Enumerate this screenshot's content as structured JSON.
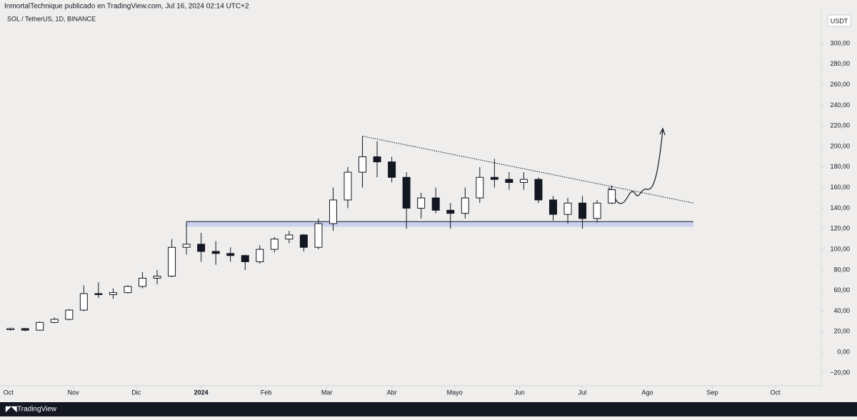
{
  "header": "InmortalTechnique publicado en TradingView.com, Jul 16, 2024 02:14 UTC+2",
  "footer": "TradingView",
  "chart_data": {
    "type": "candlestick",
    "title": "SOL / TetherUS, 1D, BINANCE",
    "currency": "USDT",
    "x": [
      "2023-10-02",
      "2023-10-09",
      "2023-10-16",
      "2023-10-23",
      "2023-10-30",
      "2023-11-06",
      "2023-11-13",
      "2023-11-20",
      "2023-11-27",
      "2023-12-04",
      "2023-12-11",
      "2023-12-18",
      "2023-12-25",
      "2024-01-01",
      "2024-01-08",
      "2024-01-15",
      "2024-01-22",
      "2024-01-29",
      "2024-02-05",
      "2024-02-12",
      "2024-02-19",
      "2024-02-26",
      "2024-03-04",
      "2024-03-11",
      "2024-03-18",
      "2024-03-25",
      "2024-04-01",
      "2024-04-08",
      "2024-04-15",
      "2024-04-22",
      "2024-04-29",
      "2024-05-06",
      "2024-05-13",
      "2024-05-20",
      "2024-05-27",
      "2024-06-03",
      "2024-06-10",
      "2024-06-17",
      "2024-06-24",
      "2024-07-01",
      "2024-07-08",
      "2024-07-15"
    ],
    "open": [
      22,
      23,
      21.5,
      29,
      32,
      41,
      57,
      56,
      58,
      64,
      72,
      74,
      102,
      105,
      98,
      96,
      94,
      88,
      100,
      110,
      114,
      102,
      125,
      148,
      175,
      190,
      185,
      170,
      140,
      150,
      138,
      135,
      150,
      170,
      168,
      165,
      168,
      148,
      134,
      145,
      130,
      145
    ],
    "high": [
      24,
      23.5,
      30,
      34,
      42,
      65,
      68,
      62,
      65,
      78,
      80,
      110,
      125,
      116,
      108,
      102,
      95,
      104,
      112,
      118,
      115,
      130,
      160,
      180,
      210,
      205,
      190,
      175,
      155,
      160,
      145,
      160,
      180,
      188,
      175,
      175,
      170,
      152,
      150,
      152,
      148,
      162
    ],
    "low": [
      21,
      20.5,
      21,
      28,
      31,
      40,
      53,
      52,
      57,
      62,
      66,
      73,
      95,
      88,
      85,
      88,
      80,
      86,
      97,
      106,
      98,
      100,
      118,
      140,
      160,
      170,
      165,
      120,
      130,
      135,
      120,
      130,
      145,
      160,
      158,
      158,
      145,
      128,
      125,
      120,
      126,
      144
    ],
    "close": [
      23,
      21.5,
      29,
      32,
      41,
      57,
      56,
      58,
      64,
      72,
      74,
      102,
      105,
      98,
      96,
      94,
      88,
      100,
      110,
      114,
      102,
      125,
      148,
      175,
      190,
      185,
      170,
      140,
      150,
      138,
      135,
      150,
      170,
      168,
      165,
      168,
      148,
      134,
      145,
      130,
      145,
      158
    ],
    "up_color": "#ffffff",
    "down_color": "#131722",
    "xlim": [
      "2023-09-27",
      "2024-10-23"
    ],
    "xticks": [
      {
        "value": "2023-10-01",
        "label": "Oct"
      },
      {
        "value": "2023-11-01",
        "label": "Nov"
      },
      {
        "value": "2023-12-01",
        "label": "Dic"
      },
      {
        "value": "2024-01-01",
        "label": "2024"
      },
      {
        "value": "2024-02-01",
        "label": "Feb"
      },
      {
        "value": "2024-03-01",
        "label": "Mar"
      },
      {
        "value": "2024-04-01",
        "label": "Abr"
      },
      {
        "value": "2024-05-01",
        "label": "Mayo"
      },
      {
        "value": "2024-06-01",
        "label": "Jun"
      },
      {
        "value": "2024-07-01",
        "label": "Jul"
      },
      {
        "value": "2024-08-01",
        "label": "Ago"
      },
      {
        "value": "2024-09-01",
        "label": "Sep"
      },
      {
        "value": "2024-10-01",
        "label": "Oct"
      }
    ],
    "ylim": [
      -32.5,
      332.6
    ],
    "yticks": [
      {
        "value": -20,
        "label": "−20,00"
      },
      {
        "value": 0,
        "label": "0,00"
      },
      {
        "value": 20,
        "label": "20,00"
      },
      {
        "value": 40,
        "label": "40,00"
      },
      {
        "value": 60,
        "label": "60,00"
      },
      {
        "value": 80,
        "label": "80,00"
      },
      {
        "value": 100,
        "label": "100,00"
      },
      {
        "value": 120,
        "label": "120,00"
      },
      {
        "value": 140,
        "label": "140,00"
      },
      {
        "value": 160,
        "label": "160,00"
      },
      {
        "value": 180,
        "label": "180,00"
      },
      {
        "value": 200,
        "label": "200,00"
      },
      {
        "value": 220,
        "label": "220,00"
      },
      {
        "value": 240,
        "label": "240,00"
      },
      {
        "value": 260,
        "label": "260,00"
      },
      {
        "value": 280,
        "label": "280,00"
      },
      {
        "value": 300,
        "label": "300,00"
      }
    ],
    "support_zone": {
      "x": [
        "2023-12-25",
        "2024-08-23"
      ],
      "y": [
        122,
        127
      ]
    },
    "trendline": {
      "x": [
        "2024-03-18",
        "2024-08-23"
      ],
      "y": [
        210,
        145
      ]
    }
  }
}
